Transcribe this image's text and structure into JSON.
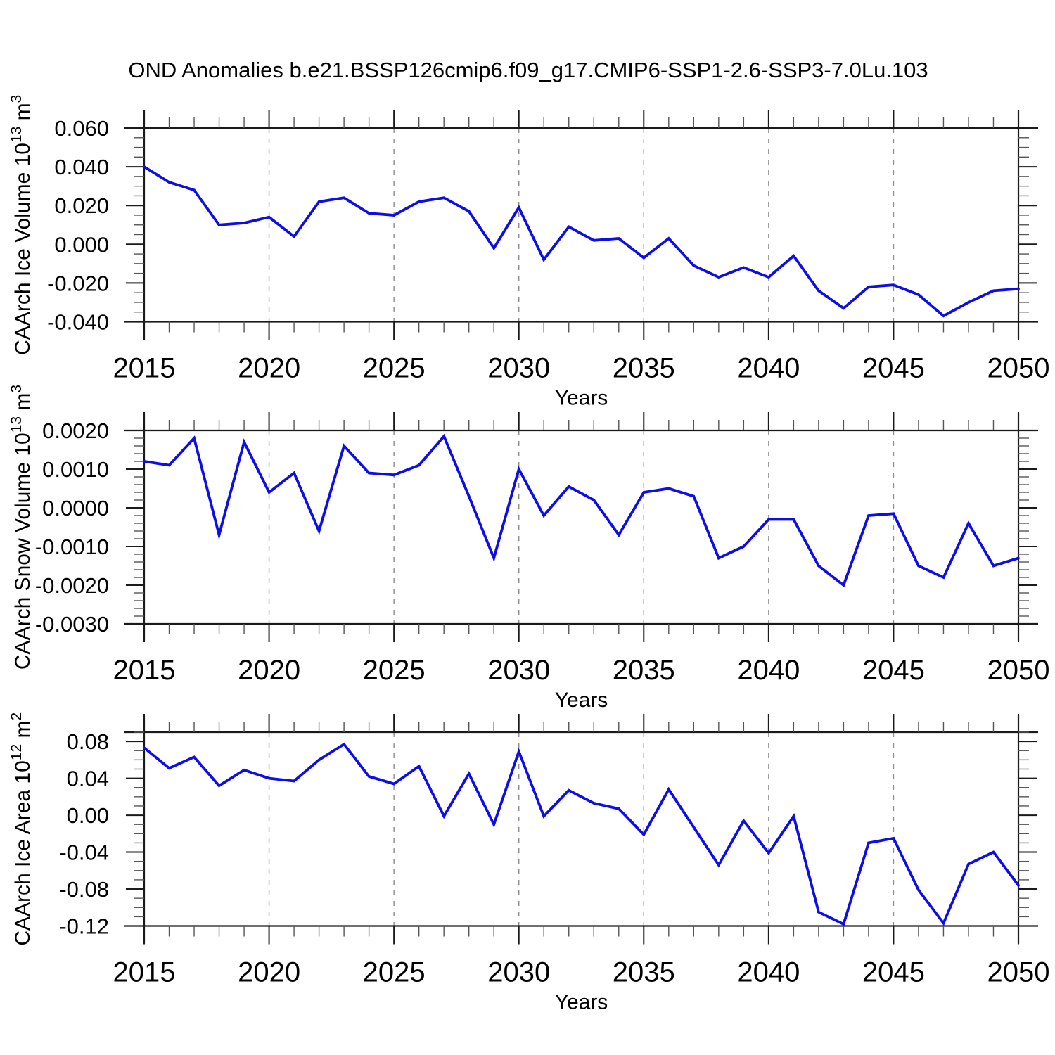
{
  "title": "OND Anomalies b.e21.BSSP126cmip6.f09_g17.CMIP6-SSP1-2.6-SSP3-7.0Lu.103",
  "line_color": "#0d0de8",
  "x_axis": {
    "title": "Years",
    "range": [
      2015,
      2050
    ],
    "tick_years": [
      2015,
      2020,
      2025,
      2030,
      2035,
      2040,
      2045,
      2050
    ],
    "tick_labels": [
      "2015",
      "2020",
      "2025",
      "2030",
      "2035",
      "2040",
      "2045",
      "2050"
    ],
    "grid_years": [
      2020,
      2025,
      2030,
      2035,
      2040,
      2045
    ],
    "minor_step_years": 1,
    "years": [
      2015,
      2016,
      2017,
      2018,
      2019,
      2020,
      2021,
      2022,
      2023,
      2024,
      2025,
      2026,
      2027,
      2028,
      2029,
      2030,
      2031,
      2032,
      2033,
      2034,
      2035,
      2036,
      2037,
      2038,
      2039,
      2040,
      2041,
      2042,
      2043,
      2044,
      2045,
      2046,
      2047,
      2048,
      2049,
      2050
    ]
  },
  "chart_data": [
    {
      "type": "line",
      "name": "ice_volume",
      "xlabel": "Years",
      "ylabel": "CAArch Ice Volume 10^13 m^3",
      "ylabel_prefix": "CAArch Ice Volume 10",
      "ylabel_exp": "13",
      "ylabel_unit": " m",
      "ylabel_unit_exp": "3",
      "ytick_labels": [
        "0.060",
        "0.040",
        "0.020",
        "0.000",
        "-0.020",
        "-0.040"
      ],
      "ytick_values": [
        0.06,
        0.04,
        0.02,
        0.0,
        -0.02,
        -0.04
      ],
      "yminor_step": 0.005,
      "frame_range": [
        0.06,
        -0.04
      ],
      "grid": "vertical-dashed",
      "legend": "none",
      "values": [
        0.04,
        0.032,
        0.028,
        0.01,
        0.011,
        0.014,
        0.004,
        0.022,
        0.024,
        0.016,
        0.015,
        0.022,
        0.024,
        0.017,
        -0.002,
        0.019,
        -0.008,
        0.009,
        0.002,
        0.003,
        -0.007,
        0.003,
        -0.011,
        -0.017,
        -0.012,
        -0.017,
        -0.006,
        -0.024,
        -0.033,
        -0.022,
        -0.021,
        -0.026,
        -0.037,
        -0.03,
        -0.024,
        -0.023
      ]
    },
    {
      "type": "line",
      "name": "snow_volume",
      "xlabel": "Years",
      "ylabel": "CAArch Snow Volume 10^13 m^3",
      "ylabel_prefix": "CAArch Snow Volume 10",
      "ylabel_exp": "13",
      "ylabel_unit": " m",
      "ylabel_unit_exp": "3",
      "ytick_labels": [
        "0.0020",
        "0.0010",
        "0.0000",
        "-0.0010",
        "-0.0020",
        "-0.0030"
      ],
      "ytick_values": [
        0.002,
        0.001,
        0.0,
        -0.001,
        -0.002,
        -0.003
      ],
      "yminor_step": 0.0002,
      "frame_range": [
        0.002,
        -0.003
      ],
      "grid": "vertical-dashed",
      "legend": "none",
      "values": [
        0.0012,
        0.0011,
        0.0018,
        -0.0007,
        0.0017,
        0.0004,
        0.0009,
        -0.0006,
        0.0016,
        0.0009,
        0.00085,
        0.0011,
        0.00185,
        0.0003,
        -0.0013,
        0.001,
        -0.0002,
        0.00055,
        0.0002,
        -0.0007,
        0.0004,
        0.0005,
        0.0003,
        -0.0013,
        -0.001,
        -0.0003,
        -0.0003,
        -0.0015,
        -0.002,
        -0.0002,
        -0.00015,
        -0.0015,
        -0.0018,
        -0.0004,
        -0.0015,
        -0.0013
      ]
    },
    {
      "type": "line",
      "name": "ice_area",
      "xlabel": "Years",
      "ylabel": "CAArch Ice Area 10^12 m^2",
      "ylabel_prefix": "CAArch Ice Area 10",
      "ylabel_exp": "12",
      "ylabel_unit": " m",
      "ylabel_unit_exp": "2",
      "ytick_labels": [
        "0.08",
        "0.04",
        "0.00",
        "-0.04",
        "-0.08",
        "-0.12"
      ],
      "ytick_values": [
        0.08,
        0.04,
        0.0,
        -0.04,
        -0.08,
        -0.12
      ],
      "yminor_step": 0.01,
      "frame_range": [
        0.09,
        -0.12
      ],
      "grid": "vertical-dashed",
      "legend": "none",
      "values": [
        0.073,
        0.051,
        0.063,
        0.032,
        0.049,
        0.04,
        0.037,
        0.06,
        0.077,
        0.042,
        0.034,
        0.053,
        -0.001,
        0.045,
        -0.01,
        0.069,
        -0.001,
        0.027,
        0.013,
        0.007,
        -0.021,
        0.028,
        -0.013,
        -0.054,
        -0.006,
        -0.041,
        -0.001,
        -0.105,
        -0.118,
        -0.03,
        -0.025,
        -0.081,
        -0.117,
        -0.053,
        -0.04,
        -0.076
      ]
    }
  ]
}
